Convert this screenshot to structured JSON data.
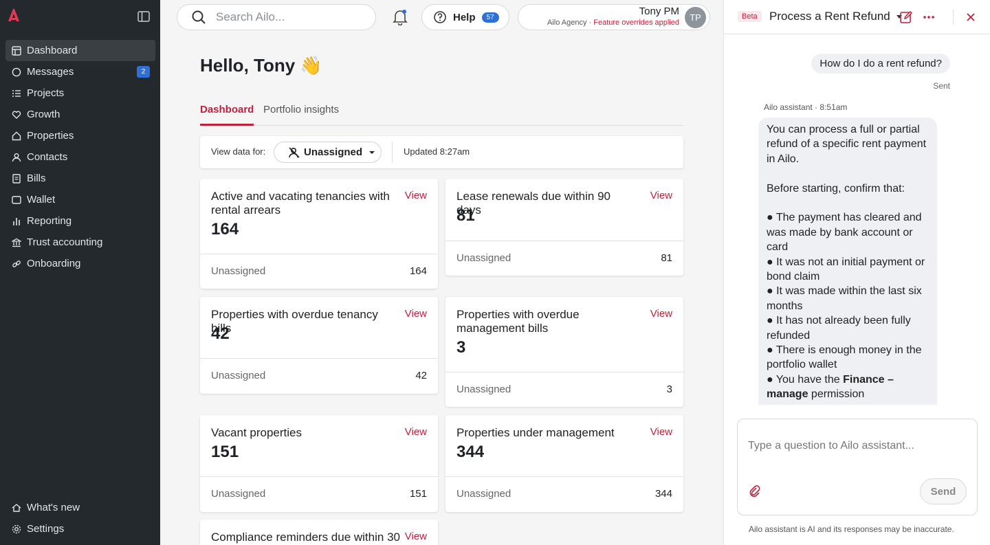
{
  "colors": {
    "accent": "#c21f3a",
    "sidebar_bg": "#24292e",
    "badge_blue": "#2f6fd8"
  },
  "sidebar": {
    "items": [
      {
        "label": "Dashboard",
        "icon": "dashboard-icon",
        "active": true
      },
      {
        "label": "Messages",
        "icon": "message-icon",
        "badge": "2"
      },
      {
        "label": "Projects",
        "icon": "list-icon"
      },
      {
        "label": "Growth",
        "icon": "heart-icon"
      },
      {
        "label": "Properties",
        "icon": "home-icon"
      },
      {
        "label": "Contacts",
        "icon": "person-icon"
      },
      {
        "label": "Bills",
        "icon": "bill-icon"
      },
      {
        "label": "Wallet",
        "icon": "wallet-icon"
      },
      {
        "label": "Reporting",
        "icon": "bar-chart-icon"
      },
      {
        "label": "Trust accounting",
        "icon": "bank-icon"
      },
      {
        "label": "Onboarding",
        "icon": "link-icon"
      }
    ],
    "bottom": [
      {
        "label": "What's new",
        "icon": "sparkle-icon"
      },
      {
        "label": "Settings",
        "icon": "gear-icon"
      }
    ]
  },
  "header": {
    "search_placeholder": "Search Ailo...",
    "help_label": "Help",
    "help_count": "57",
    "user_name": "Tony PM",
    "agency": "Ailo Agency",
    "separator": "·",
    "override_note": "Feature overrides applied",
    "avatar_initials": "TP"
  },
  "main": {
    "greeting": "Hello, Tony 👋",
    "tabs": [
      "Dashboard",
      "Portfolio insights"
    ],
    "filter": {
      "label": "View data for:",
      "value": "Unassigned",
      "updated": "Updated 8:27am"
    },
    "view_label": "View",
    "cards": [
      {
        "title": "Active and vacating tenancies with rental arrears",
        "value": "164",
        "foot_label": "Unassigned",
        "foot_value": "164"
      },
      {
        "title": "Lease renewals due within 90 days",
        "value": "81",
        "foot_label": "Unassigned",
        "foot_value": "81"
      },
      {
        "title": "Properties with overdue tenancy bills",
        "value": "42",
        "foot_label": "Unassigned",
        "foot_value": "42"
      },
      {
        "title": "Properties with overdue management bills",
        "value": "3",
        "foot_label": "Unassigned",
        "foot_value": "3"
      },
      {
        "title": "Vacant properties",
        "value": "151",
        "foot_label": "Unassigned",
        "foot_value": "151"
      },
      {
        "title": "Properties under management",
        "value": "344",
        "foot_label": "Unassigned",
        "foot_value": "344"
      },
      {
        "title": "Compliance reminders due within 30"
      }
    ]
  },
  "chat": {
    "beta_label": "Beta",
    "title": "Process a Rent Refund",
    "user_message": "How do I do a rent refund?",
    "sent_label": "Sent",
    "assistant_name": "Ailo assistant",
    "assistant_sep": "·",
    "assistant_time": "8:51am",
    "answer_intro": "You can process a full or partial refund of a specific rent payment in Ailo.",
    "answer_lead": "Before starting, confirm that:",
    "bullets": [
      "● The payment has cleared and was made by bank account or card",
      "● It was not an initial payment or bond claim",
      "● It was made within the last six months",
      "● It has not already been fully refunded",
      "● There is enough money in the portfolio wallet"
    ],
    "last_bullet_pre": "● You have the",
    "last_bullet_bold": "Finance – manage",
    "last_bullet_post": "permission",
    "input_placeholder": "Type a question to Ailo assistant...",
    "send_label": "Send",
    "disclaimer": "Ailo assistant is AI and its responses may be inaccurate."
  }
}
